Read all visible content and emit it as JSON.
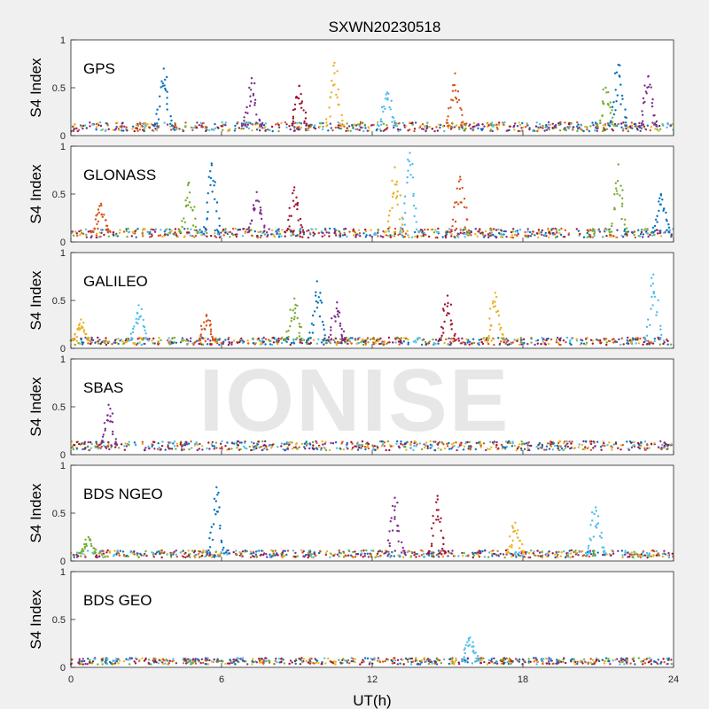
{
  "figure": {
    "title": "SXWN20230518",
    "watermark": "IONISE",
    "xlabel": "UT(h)",
    "ylabel": "S4 Index"
  },
  "colors": {
    "figure_bg": "#f0f0f0",
    "axes_bg": "#ffffff",
    "axis_line": "#262626",
    "series": [
      "#0072BD",
      "#D95319",
      "#EDB120",
      "#7E2F8E",
      "#77AC30",
      "#4DBEEE",
      "#A2142F"
    ]
  },
  "chart_data": [
    {
      "type": "scatter",
      "constellation": "GPS",
      "xlim": [
        0,
        24
      ],
      "ylim": [
        0,
        1
      ],
      "xticks": [
        "0",
        "6",
        "12",
        "18",
        "24"
      ],
      "yticks": [
        "0",
        "0.5",
        "1"
      ],
      "grid": false,
      "baseline": 0.1,
      "peaks": [
        {
          "x": 3.7,
          "y": 0.7
        },
        {
          "x": 7.2,
          "y": 0.6
        },
        {
          "x": 9.1,
          "y": 0.52
        },
        {
          "x": 10.5,
          "y": 0.76
        },
        {
          "x": 12.6,
          "y": 0.45
        },
        {
          "x": 15.3,
          "y": 0.65
        },
        {
          "x": 21.3,
          "y": 0.5
        },
        {
          "x": 21.8,
          "y": 0.74
        },
        {
          "x": 23.0,
          "y": 0.62
        }
      ]
    },
    {
      "type": "scatter",
      "constellation": "GLONASS",
      "xlim": [
        0,
        24
      ],
      "ylim": [
        0,
        1
      ],
      "xticks": [
        "0",
        "6",
        "12",
        "18",
        "24"
      ],
      "yticks": [
        "0",
        "0.5",
        "1"
      ],
      "grid": false,
      "baseline": 0.1,
      "peaks": [
        {
          "x": 1.2,
          "y": 0.4
        },
        {
          "x": 4.7,
          "y": 0.62
        },
        {
          "x": 5.6,
          "y": 0.82
        },
        {
          "x": 7.4,
          "y": 0.52
        },
        {
          "x": 8.9,
          "y": 0.57
        },
        {
          "x": 12.9,
          "y": 0.78
        },
        {
          "x": 13.5,
          "y": 0.93
        },
        {
          "x": 15.5,
          "y": 0.68
        },
        {
          "x": 21.8,
          "y": 0.81
        },
        {
          "x": 23.5,
          "y": 0.5
        }
      ]
    },
    {
      "type": "scatter",
      "constellation": "GALILEO",
      "xlim": [
        0,
        24
      ],
      "ylim": [
        0,
        1
      ],
      "xticks": [
        "0",
        "6",
        "12",
        "18",
        "24"
      ],
      "yticks": [
        "0",
        "0.5",
        "1"
      ],
      "grid": false,
      "baseline": 0.08,
      "peaks": [
        {
          "x": 0.4,
          "y": 0.3
        },
        {
          "x": 2.7,
          "y": 0.45
        },
        {
          "x": 5.4,
          "y": 0.35
        },
        {
          "x": 8.9,
          "y": 0.52
        },
        {
          "x": 9.8,
          "y": 0.7
        },
        {
          "x": 10.6,
          "y": 0.48
        },
        {
          "x": 15.0,
          "y": 0.55
        },
        {
          "x": 16.9,
          "y": 0.58
        },
        {
          "x": 23.2,
          "y": 0.77
        }
      ]
    },
    {
      "type": "scatter",
      "constellation": "SBAS",
      "xlim": [
        0,
        24
      ],
      "ylim": [
        0,
        1
      ],
      "xticks": [
        "0",
        "6",
        "12",
        "18",
        "24"
      ],
      "yticks": [
        "0",
        "0.5",
        "1"
      ],
      "grid": false,
      "baseline": 0.1,
      "peaks": [
        {
          "x": 1.5,
          "y": 0.52
        }
      ]
    },
    {
      "type": "scatter",
      "constellation": "BDS NGEO",
      "xlim": [
        0,
        24
      ],
      "ylim": [
        0,
        1
      ],
      "xticks": [
        "0",
        "6",
        "12",
        "18",
        "24"
      ],
      "yticks": [
        "0",
        "0.5",
        "1"
      ],
      "grid": false,
      "baseline": 0.08,
      "peaks": [
        {
          "x": 0.7,
          "y": 0.25
        },
        {
          "x": 5.8,
          "y": 0.77
        },
        {
          "x": 12.9,
          "y": 0.66
        },
        {
          "x": 14.6,
          "y": 0.68
        },
        {
          "x": 17.7,
          "y": 0.4
        },
        {
          "x": 20.9,
          "y": 0.56
        }
      ]
    },
    {
      "type": "scatter",
      "constellation": "BDS GEO",
      "xlim": [
        0,
        24
      ],
      "ylim": [
        0,
        1
      ],
      "xticks": [
        "0",
        "6",
        "12",
        "18",
        "24"
      ],
      "yticks": [
        "0",
        "0.5",
        "1"
      ],
      "grid": false,
      "baseline": 0.07,
      "peaks": [
        {
          "x": 15.9,
          "y": 0.31
        }
      ]
    }
  ]
}
